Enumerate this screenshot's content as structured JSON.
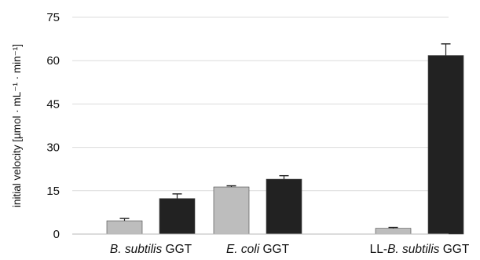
{
  "chart_data": {
    "type": "bar",
    "title": "",
    "ylabel": "initial velocity [µmol · mL⁻¹ · min⁻¹]",
    "xlabel": "",
    "ylim": [
      0,
      75
    ],
    "yticks": [
      0,
      15,
      30,
      45,
      60,
      75
    ],
    "grid": true,
    "legend": "none",
    "groups": [
      {
        "label_italic": "B. subtilis",
        "label_rest": " GGT",
        "bars": [
          {
            "value": 4.6,
            "error": 0.8,
            "color": "#bdbdbd"
          },
          {
            "value": 12.3,
            "error": 1.6,
            "color": "#222222"
          }
        ]
      },
      {
        "label_italic": "E. coli",
        "label_rest": " GGT",
        "bars": [
          {
            "value": 16.3,
            "error": 0.4,
            "color": "#bdbdbd"
          },
          {
            "value": 19.0,
            "error": 1.2,
            "color": "#222222"
          }
        ]
      },
      {
        "label_prefix": "LL-",
        "label_italic": "B. subtilis",
        "label_rest": " GGT",
        "bars": [
          {
            "value": 2.0,
            "error": 0.3,
            "color": "#bdbdbd"
          },
          {
            "value": 61.8,
            "error": 4.0,
            "color": "#222222"
          }
        ]
      }
    ]
  }
}
